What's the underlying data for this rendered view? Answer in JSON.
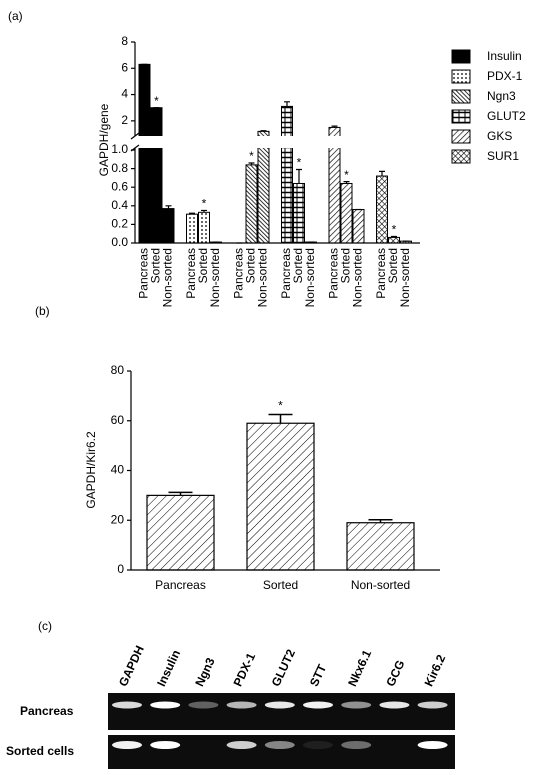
{
  "chart_data": [
    {
      "type": "bar",
      "panel_label": "(a)",
      "y_label": "GAPDH/gene",
      "categories": [
        "Pancreas",
        "Sorted",
        "Non-sorted"
      ],
      "series": [
        {
          "name": "Insulin",
          "color": "#000000",
          "pattern": "solid",
          "values": [
            6.3,
            3.0,
            0.37
          ],
          "errors": [
            0,
            0,
            0.03
          ],
          "annotations": [
            null,
            "*",
            null
          ]
        },
        {
          "name": "PDX-1",
          "color": "#000000",
          "pattern": "dots",
          "values": [
            0.31,
            0.33,
            0.01
          ],
          "errors": [
            0.01,
            0.02,
            0
          ],
          "annotations": [
            null,
            "*",
            null
          ]
        },
        {
          "name": "Ngn3",
          "color": "#000000",
          "pattern": "backslash",
          "values": [
            0,
            0.84,
            1.2
          ],
          "errors": [
            0,
            0.02,
            0.05
          ],
          "annotations": [
            null,
            "*",
            null
          ]
        },
        {
          "name": "GLUT2",
          "color": "#000000",
          "pattern": "grid",
          "values": [
            3.1,
            0.64,
            0.01
          ],
          "errors": [
            0.35,
            0.15,
            0
          ],
          "annotations": [
            null,
            "*",
            null
          ]
        },
        {
          "name": "GKS",
          "color": "#000000",
          "pattern": "slash",
          "values": [
            1.5,
            0.64,
            0.36
          ],
          "errors": [
            0.1,
            0.02,
            0
          ],
          "annotations": [
            null,
            "*",
            null
          ]
        },
        {
          "name": "SUR1",
          "color": "#000000",
          "pattern": "crosshatch",
          "values": [
            0.72,
            0.06,
            0.02
          ],
          "errors": [
            0.05,
            0.01,
            0
          ],
          "annotations": [
            null,
            "*",
            null
          ]
        }
      ],
      "ylim": [
        0,
        8
      ],
      "axis_break": 1,
      "yticks": [
        {
          "value": 0,
          "label": "0.0"
        },
        0.2,
        0.4,
        0.6,
        0.8,
        {
          "value": 1,
          "label": "1.0"
        },
        2,
        4,
        6,
        8
      ],
      "legend": "right"
    },
    {
      "type": "bar",
      "panel_label": "(b)",
      "y_label": "GAPDH/Kir6.2",
      "categories": [
        "Pancreas",
        "Sorted",
        "Non-sorted"
      ],
      "values": [
        30,
        59,
        19
      ],
      "errors": [
        1.2,
        3.5,
        1.2
      ],
      "annotations": [
        null,
        "*",
        null
      ],
      "color": "#000000",
      "pattern": "slash",
      "ylim": [
        0,
        80
      ],
      "yticks": [
        0,
        20,
        40,
        60,
        80
      ]
    }
  ],
  "gel": {
    "panel_label": "(c)",
    "lanes": [
      "GAPDH",
      "Insulin",
      "Ngn3",
      "PDX-1",
      "GLUT2",
      "STT",
      "Nkx6.1",
      "GCG",
      "Kir6.2"
    ],
    "rows": [
      "Pancreas",
      "Sorted cells"
    ]
  }
}
